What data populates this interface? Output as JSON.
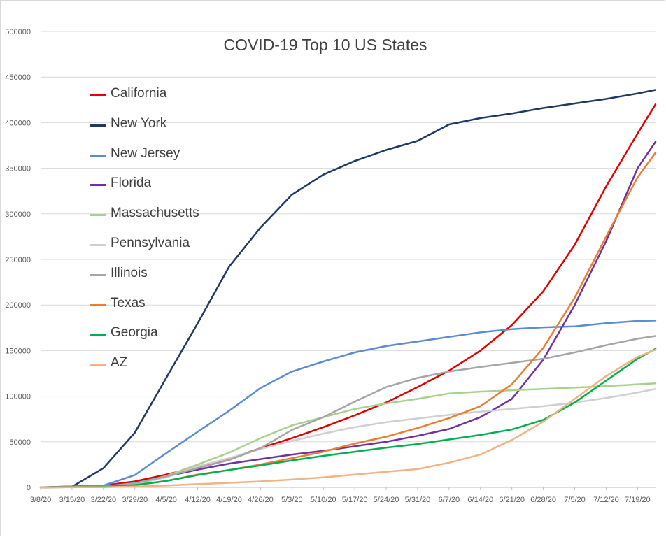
{
  "chart_data": {
    "type": "line",
    "title": "COVID-19 Top 10 US States",
    "xlabel": "",
    "ylabel": "",
    "ylim": [
      0,
      500000
    ],
    "y_ticks": [
      "0",
      "50000",
      "100000",
      "150000",
      "200000",
      "250000",
      "300000",
      "350000",
      "400000",
      "450000",
      "500000"
    ],
    "x_ticks": [
      "3/8/20",
      "3/15/20",
      "3/22/20",
      "3/29/20",
      "4/5/20",
      "4/12/20",
      "4/19/20",
      "4/26/20",
      "5/3/20",
      "5/10/20",
      "5/17/20",
      "5/24/20",
      "5/31/20",
      "6/7/20",
      "6/14/20",
      "6/21/20",
      "6/28/20",
      "7/5/20",
      "7/12/20",
      "7/19/20"
    ],
    "x_range": [
      "3/8/20",
      "7/23/20"
    ],
    "grid": "horizontal",
    "legend_position": "upper-left",
    "series": [
      {
        "name": "California",
        "color": "#e00000",
        "x": [
          "3/8/20",
          "3/22/20",
          "3/29/20",
          "4/5/20",
          "4/12/20",
          "4/19/20",
          "4/26/20",
          "5/3/20",
          "5/10/20",
          "5/17/20",
          "5/24/20",
          "5/31/20",
          "6/7/20",
          "6/14/20",
          "6/21/20",
          "6/28/20",
          "7/5/20",
          "7/12/20",
          "7/19/20",
          "7/23/20"
        ],
        "values": [
          100,
          2000,
          6500,
          14000,
          22000,
          31000,
          43000,
          54000,
          66000,
          79000,
          93000,
          110000,
          128000,
          150000,
          178000,
          215000,
          266000,
          330000,
          388000,
          420000
        ]
      },
      {
        "name": "New York",
        "color": "#1f3864",
        "x": [
          "3/8/20",
          "3/15/20",
          "3/22/20",
          "3/29/20",
          "4/5/20",
          "4/12/20",
          "4/19/20",
          "4/26/20",
          "5/3/20",
          "5/10/20",
          "5/17/20",
          "5/24/20",
          "5/31/20",
          "6/7/20",
          "6/14/20",
          "6/21/20",
          "6/28/20",
          "7/5/20",
          "7/12/20",
          "7/19/20",
          "7/23/20"
        ],
        "values": [
          100,
          700,
          21000,
          60000,
          120000,
          180000,
          242000,
          285000,
          321000,
          343000,
          358000,
          370000,
          380000,
          398000,
          405000,
          410000,
          416000,
          421000,
          426000,
          432000,
          436000
        ]
      },
      {
        "name": "New Jersey",
        "color": "#5b8bd0",
        "x": [
          "3/8/20",
          "3/22/20",
          "3/29/20",
          "4/5/20",
          "4/12/20",
          "4/19/20",
          "4/26/20",
          "5/3/20",
          "5/10/20",
          "5/17/20",
          "5/24/20",
          "5/31/20",
          "6/7/20",
          "6/14/20",
          "6/21/20",
          "6/28/20",
          "7/5/20",
          "7/12/20",
          "7/19/20",
          "7/23/20"
        ],
        "values": [
          0,
          2000,
          13500,
          37500,
          61000,
          84000,
          109000,
          127000,
          138000,
          148000,
          155000,
          160000,
          165000,
          170000,
          173500,
          175500,
          176500,
          180000,
          182500,
          183000
        ]
      },
      {
        "name": "Florida",
        "color": "#7030a0",
        "x": [
          "3/8/20",
          "3/22/20",
          "3/29/20",
          "4/5/20",
          "4/12/20",
          "4/19/20",
          "4/26/20",
          "5/3/20",
          "5/10/20",
          "5/17/20",
          "5/24/20",
          "5/31/20",
          "6/7/20",
          "6/14/20",
          "6/21/20",
          "6/28/20",
          "7/5/20",
          "7/12/20",
          "7/19/20",
          "7/23/20"
        ],
        "values": [
          0,
          1000,
          5000,
          12000,
          19500,
          26000,
          31000,
          36000,
          40000,
          45000,
          50000,
          56500,
          64000,
          77000,
          97000,
          140000,
          200000,
          270000,
          350000,
          379000
        ]
      },
      {
        "name": "Massachusetts",
        "color": "#a9d18e",
        "x": [
          "3/8/20",
          "3/22/20",
          "3/29/20",
          "4/5/20",
          "4/12/20",
          "4/19/20",
          "4/26/20",
          "5/3/20",
          "5/10/20",
          "5/17/20",
          "5/24/20",
          "5/31/20",
          "6/7/20",
          "6/14/20",
          "6/21/20",
          "6/28/20",
          "7/5/20",
          "7/12/20",
          "7/19/20",
          "7/23/20"
        ],
        "values": [
          0,
          500,
          4000,
          12500,
          25000,
          38000,
          54000,
          68000,
          77000,
          86000,
          92000,
          97000,
          103000,
          105000,
          106500,
          108000,
          109500,
          111000,
          113000,
          114000
        ]
      },
      {
        "name": "Pennsylvania",
        "color": "#d0cece",
        "x": [
          "3/8/20",
          "3/22/20",
          "3/29/20",
          "4/5/20",
          "4/12/20",
          "4/19/20",
          "4/26/20",
          "5/3/20",
          "5/10/20",
          "5/17/20",
          "5/24/20",
          "5/31/20",
          "6/7/20",
          "6/14/20",
          "6/21/20",
          "6/28/20",
          "7/5/20",
          "7/12/20",
          "7/19/20",
          "7/23/20"
        ],
        "values": [
          0,
          500,
          3000,
          11000,
          23000,
          32000,
          42000,
          51000,
          59000,
          66000,
          71500,
          75500,
          79500,
          83000,
          86000,
          89000,
          93000,
          98000,
          104000,
          108000
        ]
      },
      {
        "name": "Illinois",
        "color": "#a6a6a6",
        "x": [
          "3/8/20",
          "3/22/20",
          "3/29/20",
          "4/5/20",
          "4/12/20",
          "4/19/20",
          "4/26/20",
          "5/3/20",
          "5/10/20",
          "5/17/20",
          "5/24/20",
          "5/31/20",
          "6/7/20",
          "6/14/20",
          "6/21/20",
          "6/28/20",
          "7/5/20",
          "7/12/20",
          "7/19/20",
          "7/23/20"
        ],
        "values": [
          0,
          1000,
          4500,
          12000,
          21000,
          30000,
          43000,
          63000,
          77000,
          94000,
          110000,
          120000,
          127000,
          132000,
          136500,
          141000,
          148000,
          156000,
          163000,
          166000
        ]
      },
      {
        "name": "Texas",
        "color": "#ed7d31",
        "x": [
          "3/8/20",
          "3/22/20",
          "3/29/20",
          "4/5/20",
          "4/12/20",
          "4/19/20",
          "4/26/20",
          "5/3/20",
          "5/10/20",
          "5/17/20",
          "5/24/20",
          "5/31/20",
          "6/7/20",
          "6/14/20",
          "6/21/20",
          "6/28/20",
          "7/5/20",
          "7/12/20",
          "7/19/20",
          "7/23/20"
        ],
        "values": [
          0,
          500,
          2500,
          7000,
          14000,
          19000,
          25000,
          32000,
          39000,
          48000,
          55500,
          65000,
          76000,
          89000,
          113000,
          153000,
          208000,
          275000,
          340000,
          367000
        ]
      },
      {
        "name": "Georgia",
        "color": "#00b050",
        "x": [
          "3/8/20",
          "3/22/20",
          "3/29/20",
          "4/5/20",
          "4/12/20",
          "4/19/20",
          "4/26/20",
          "5/3/20",
          "5/10/20",
          "5/17/20",
          "5/24/20",
          "5/31/20",
          "6/7/20",
          "6/14/20",
          "6/21/20",
          "6/28/20",
          "7/5/20",
          "7/12/20",
          "7/19/20",
          "7/23/20"
        ],
        "values": [
          0,
          500,
          2500,
          7000,
          13500,
          19000,
          24000,
          29500,
          34500,
          39000,
          43500,
          47500,
          52500,
          57500,
          63500,
          74000,
          93000,
          117000,
          141000,
          152000
        ]
      },
      {
        "name": "AZ",
        "color": "#f4b183",
        "x": [
          "3/8/20",
          "3/22/20",
          "3/29/20",
          "4/5/20",
          "4/12/20",
          "4/19/20",
          "4/26/20",
          "5/3/20",
          "5/10/20",
          "5/17/20",
          "5/24/20",
          "5/31/20",
          "6/7/20",
          "6/14/20",
          "6/21/20",
          "6/28/20",
          "7/5/20",
          "7/12/20",
          "7/19/20",
          "7/23/20"
        ],
        "values": [
          0,
          200,
          900,
          2000,
          3500,
          5000,
          6500,
          8500,
          11000,
          14000,
          17000,
          20000,
          27000,
          36000,
          52000,
          72000,
          97000,
          122000,
          143000,
          151000
        ]
      }
    ]
  }
}
